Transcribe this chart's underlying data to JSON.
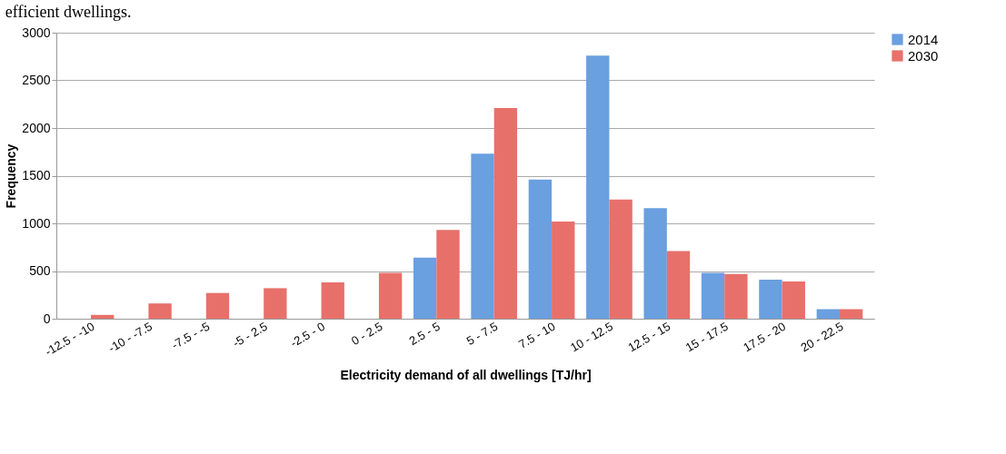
{
  "chart_data": {
    "type": "bar",
    "xlabel": "Electricity demand of all dwellings [TJ/hr]",
    "ylabel": "Frequency",
    "annotations": [
      "efficient dwellings."
    ],
    "categories": [
      "-12.5 - -10",
      "-10 - -7.5",
      "-7.5 - -5",
      "-5 - 2.5",
      "-2.5 - 0",
      "0 - 2.5",
      "2.5 - 5",
      "5 - 7.5",
      "7.5 - 10",
      "10 - 12.5",
      "12.5 - 15",
      "15 - 17.5",
      "17.5 - 20",
      "20 - 22.5"
    ],
    "series": [
      {
        "name": "2014",
        "color": "#6a9fe0",
        "values": [
          0,
          0,
          0,
          0,
          0,
          0,
          640,
          1730,
          1460,
          2760,
          1160,
          480,
          410,
          100
        ]
      },
      {
        "name": "2030",
        "color": "#e8706a",
        "values": [
          40,
          160,
          270,
          320,
          380,
          480,
          930,
          2210,
          1020,
          1250,
          710,
          470,
          390,
          100
        ]
      }
    ],
    "ylim": [
      0,
      3000
    ],
    "yticks": [
      0,
      500,
      1000,
      1500,
      2000,
      2500,
      3000
    ],
    "grid": "y",
    "legend": "right"
  }
}
